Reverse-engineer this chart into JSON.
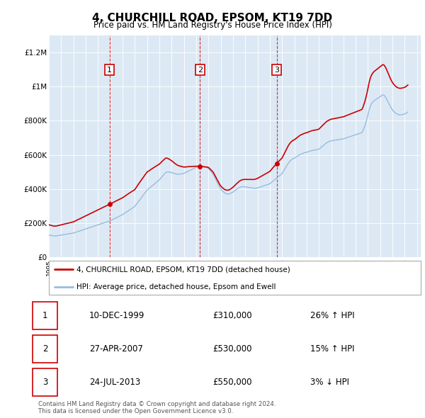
{
  "title": "4, CHURCHILL ROAD, EPSOM, KT19 7DD",
  "subtitle": "Price paid vs. HM Land Registry's House Price Index (HPI)",
  "ylim": [
    0,
    1300000
  ],
  "yticks": [
    0,
    200000,
    400000,
    600000,
    800000,
    1000000,
    1200000
  ],
  "ytick_labels": [
    "£0",
    "£200K",
    "£400K",
    "£600K",
    "£800K",
    "£1M",
    "£1.2M"
  ],
  "bg_color": "#dce9f5",
  "grid_color": "#ffffff",
  "price_paid_color": "#cc0000",
  "hpi_color": "#99bbdd",
  "transactions": [
    {
      "date_num": 1999.94,
      "price": 310000,
      "label": "1"
    },
    {
      "date_num": 2007.32,
      "price": 530000,
      "label": "2"
    },
    {
      "date_num": 2013.56,
      "price": 550000,
      "label": "3"
    }
  ],
  "transaction_table": [
    {
      "num": "1",
      "date": "10-DEC-1999",
      "price": "£310,000",
      "change": "26% ↑ HPI"
    },
    {
      "num": "2",
      "date": "27-APR-2007",
      "price": "£530,000",
      "change": "15% ↑ HPI"
    },
    {
      "num": "3",
      "date": "24-JUL-2013",
      "price": "£550,000",
      "change": "3% ↓ HPI"
    }
  ],
  "legend_label_price": "4, CHURCHILL ROAD, EPSOM, KT19 7DD (detached house)",
  "legend_label_hpi": "HPI: Average price, detached house, Epsom and Ewell",
  "footer": "Contains HM Land Registry data © Crown copyright and database right 2024.\nThis data is licensed under the Open Government Licence v3.0.",
  "hpi_data_years": [
    1995.0,
    1995.083,
    1995.167,
    1995.25,
    1995.333,
    1995.417,
    1995.5,
    1995.583,
    1995.667,
    1995.75,
    1995.833,
    1995.917,
    1996.0,
    1996.083,
    1996.167,
    1996.25,
    1996.333,
    1996.417,
    1996.5,
    1996.583,
    1996.667,
    1996.75,
    1996.833,
    1996.917,
    1997.0,
    1997.083,
    1997.167,
    1997.25,
    1997.333,
    1997.417,
    1997.5,
    1997.583,
    1997.667,
    1997.75,
    1997.833,
    1997.917,
    1998.0,
    1998.083,
    1998.167,
    1998.25,
    1998.333,
    1998.417,
    1998.5,
    1998.583,
    1998.667,
    1998.75,
    1998.833,
    1998.917,
    1999.0,
    1999.083,
    1999.167,
    1999.25,
    1999.333,
    1999.417,
    1999.5,
    1999.583,
    1999.667,
    1999.75,
    1999.833,
    1999.917,
    2000.0,
    2000.083,
    2000.167,
    2000.25,
    2000.333,
    2000.417,
    2000.5,
    2000.583,
    2000.667,
    2000.75,
    2000.833,
    2000.917,
    2001.0,
    2001.083,
    2001.167,
    2001.25,
    2001.333,
    2001.417,
    2001.5,
    2001.583,
    2001.667,
    2001.75,
    2001.833,
    2001.917,
    2002.0,
    2002.083,
    2002.167,
    2002.25,
    2002.333,
    2002.417,
    2002.5,
    2002.583,
    2002.667,
    2002.75,
    2002.833,
    2002.917,
    2003.0,
    2003.083,
    2003.167,
    2003.25,
    2003.333,
    2003.417,
    2003.5,
    2003.583,
    2003.667,
    2003.75,
    2003.833,
    2003.917,
    2004.0,
    2004.083,
    2004.167,
    2004.25,
    2004.333,
    2004.417,
    2004.5,
    2004.583,
    2004.667,
    2004.75,
    2004.833,
    2004.917,
    2005.0,
    2005.083,
    2005.167,
    2005.25,
    2005.333,
    2005.417,
    2005.5,
    2005.583,
    2005.667,
    2005.75,
    2005.833,
    2005.917,
    2006.0,
    2006.083,
    2006.167,
    2006.25,
    2006.333,
    2006.417,
    2006.5,
    2006.583,
    2006.667,
    2006.75,
    2006.833,
    2006.917,
    2007.0,
    2007.083,
    2007.167,
    2007.25,
    2007.333,
    2007.417,
    2007.5,
    2007.583,
    2007.667,
    2007.75,
    2007.833,
    2007.917,
    2008.0,
    2008.083,
    2008.167,
    2008.25,
    2008.333,
    2008.417,
    2008.5,
    2008.583,
    2008.667,
    2008.75,
    2008.833,
    2008.917,
    2009.0,
    2009.083,
    2009.167,
    2009.25,
    2009.333,
    2009.417,
    2009.5,
    2009.583,
    2009.667,
    2009.75,
    2009.833,
    2009.917,
    2010.0,
    2010.083,
    2010.167,
    2010.25,
    2010.333,
    2010.417,
    2010.5,
    2010.583,
    2010.667,
    2010.75,
    2010.833,
    2010.917,
    2011.0,
    2011.083,
    2011.167,
    2011.25,
    2011.333,
    2011.417,
    2011.5,
    2011.583,
    2011.667,
    2011.75,
    2011.833,
    2011.917,
    2012.0,
    2012.083,
    2012.167,
    2012.25,
    2012.333,
    2012.417,
    2012.5,
    2012.583,
    2012.667,
    2012.75,
    2012.833,
    2012.917,
    2013.0,
    2013.083,
    2013.167,
    2013.25,
    2013.333,
    2013.417,
    2013.5,
    2013.583,
    2013.667,
    2013.75,
    2013.833,
    2013.917,
    2014.0,
    2014.083,
    2014.167,
    2014.25,
    2014.333,
    2014.417,
    2014.5,
    2014.583,
    2014.667,
    2014.75,
    2014.833,
    2014.917,
    2015.0,
    2015.083,
    2015.167,
    2015.25,
    2015.333,
    2015.417,
    2015.5,
    2015.583,
    2015.667,
    2015.75,
    2015.833,
    2015.917,
    2016.0,
    2016.083,
    2016.167,
    2016.25,
    2016.333,
    2016.417,
    2016.5,
    2016.583,
    2016.667,
    2016.75,
    2016.833,
    2016.917,
    2017.0,
    2017.083,
    2017.167,
    2017.25,
    2017.333,
    2017.417,
    2017.5,
    2017.583,
    2017.667,
    2017.75,
    2017.833,
    2017.917,
    2018.0,
    2018.083,
    2018.167,
    2018.25,
    2018.333,
    2018.417,
    2018.5,
    2018.583,
    2018.667,
    2018.75,
    2018.833,
    2018.917,
    2019.0,
    2019.083,
    2019.167,
    2019.25,
    2019.333,
    2019.417,
    2019.5,
    2019.583,
    2019.667,
    2019.75,
    2019.833,
    2019.917,
    2020.0,
    2020.083,
    2020.167,
    2020.25,
    2020.333,
    2020.417,
    2020.5,
    2020.583,
    2020.667,
    2020.75,
    2020.833,
    2020.917,
    2021.0,
    2021.083,
    2021.167,
    2021.25,
    2021.333,
    2021.417,
    2021.5,
    2021.583,
    2021.667,
    2021.75,
    2021.833,
    2021.917,
    2022.0,
    2022.083,
    2022.167,
    2022.25,
    2022.333,
    2022.417,
    2022.5,
    2022.583,
    2022.667,
    2022.75,
    2022.833,
    2022.917,
    2023.0,
    2023.083,
    2023.167,
    2023.25,
    2023.333,
    2023.417,
    2023.5,
    2023.583,
    2023.667,
    2023.75,
    2023.833,
    2023.917,
    2024.0,
    2024.083,
    2024.167,
    2024.25
  ],
  "hpi_data_values": [
    130000,
    128000,
    127000,
    126000,
    125000,
    124000,
    124000,
    124500,
    125000,
    126000,
    127000,
    128000,
    129000,
    130000,
    131000,
    132000,
    133000,
    134000,
    135000,
    136000,
    137000,
    138000,
    139000,
    140000,
    141000,
    143000,
    145000,
    147000,
    149000,
    151000,
    153000,
    155000,
    157000,
    159000,
    161000,
    163000,
    165000,
    167000,
    169000,
    171000,
    173000,
    175000,
    177000,
    179000,
    181000,
    183000,
    185000,
    187000,
    189000,
    191000,
    193000,
    195000,
    197000,
    199000,
    201000,
    203000,
    205000,
    207000,
    209000,
    211000,
    213000,
    216000,
    219000,
    222000,
    225000,
    228000,
    231000,
    234000,
    237000,
    240000,
    243000,
    246000,
    249000,
    253000,
    257000,
    261000,
    265000,
    269000,
    273000,
    277000,
    281000,
    285000,
    289000,
    293000,
    297000,
    305000,
    313000,
    321000,
    329000,
    337000,
    345000,
    353000,
    361000,
    369000,
    377000,
    385000,
    393000,
    398000,
    403000,
    408000,
    413000,
    418000,
    423000,
    428000,
    433000,
    438000,
    443000,
    448000,
    453000,
    460000,
    467000,
    474000,
    481000,
    488000,
    495000,
    498000,
    499000,
    499000,
    498000,
    497000,
    496000,
    494000,
    492000,
    490000,
    488000,
    487000,
    486000,
    486000,
    487000,
    488000,
    489000,
    490000,
    491000,
    494000,
    497000,
    500000,
    503000,
    506000,
    509000,
    512000,
    515000,
    518000,
    521000,
    524000,
    527000,
    530000,
    533000,
    535000,
    535000,
    534000,
    533000,
    531000,
    529000,
    527000,
    525000,
    523000,
    520000,
    513000,
    506000,
    499000,
    492000,
    482000,
    470000,
    458000,
    446000,
    434000,
    422000,
    410000,
    400000,
    393000,
    387000,
    381000,
    376000,
    373000,
    371000,
    370000,
    370000,
    372000,
    375000,
    378000,
    381000,
    386000,
    390000,
    395000,
    399000,
    403000,
    407000,
    410000,
    412000,
    413000,
    413000,
    413000,
    412000,
    411000,
    410000,
    409000,
    408000,
    407000,
    406000,
    405000,
    404000,
    404000,
    404000,
    405000,
    406000,
    408000,
    410000,
    412000,
    414000,
    416000,
    418000,
    420000,
    422000,
    424000,
    426000,
    428000,
    430000,
    435000,
    440000,
    445000,
    450000,
    455000,
    460000,
    465000,
    470000,
    475000,
    480000,
    485000,
    490000,
    500000,
    510000,
    520000,
    530000,
    540000,
    550000,
    558000,
    565000,
    570000,
    575000,
    578000,
    580000,
    584000,
    588000,
    592000,
    596000,
    600000,
    603000,
    606000,
    608000,
    610000,
    612000,
    614000,
    615000,
    617000,
    619000,
    621000,
    623000,
    625000,
    626000,
    627000,
    628000,
    629000,
    630000,
    631000,
    633000,
    638000,
    643000,
    648000,
    653000,
    658000,
    663000,
    668000,
    672000,
    675000,
    678000,
    680000,
    682000,
    683000,
    684000,
    685000,
    686000,
    687000,
    688000,
    689000,
    690000,
    691000,
    692000,
    693000,
    694000,
    696000,
    698000,
    700000,
    702000,
    704000,
    706000,
    708000,
    710000,
    712000,
    714000,
    716000,
    718000,
    720000,
    722000,
    724000,
    726000,
    728000,
    730000,
    740000,
    755000,
    770000,
    790000,
    810000,
    835000,
    860000,
    880000,
    895000,
    905000,
    912000,
    918000,
    922000,
    926000,
    930000,
    934000,
    938000,
    942000,
    946000,
    950000,
    952000,
    948000,
    940000,
    930000,
    918000,
    905000,
    893000,
    882000,
    872000,
    863000,
    856000,
    850000,
    845000,
    841000,
    838000,
    836000,
    835000,
    835000,
    836000,
    837000,
    838000,
    840000,
    843000,
    847000,
    851000
  ]
}
